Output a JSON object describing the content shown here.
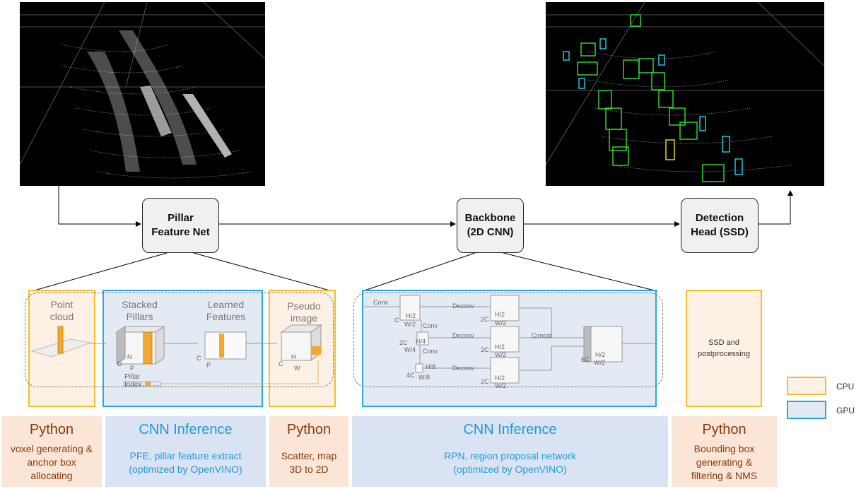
{
  "pipeline": {
    "pillar_feature_net": "Pillar\nFeature Net",
    "backbone": "Backbone\n(2D CNN)",
    "detection_head": "Detection\nHead (SSD)"
  },
  "pillar_diagram": {
    "point_cloud": "Point\ncloud",
    "stacked_pillars": "Stacked\nPillars",
    "learned_features": "Learned\nFeatures",
    "pseudo_image": "Pseudo\nimage",
    "pillar_index": "Pillar Index",
    "dims": {
      "n": "N",
      "d": "D",
      "p": "P",
      "c": "C",
      "p2": "P",
      "c2": "C",
      "h": "H",
      "w": "W"
    }
  },
  "rpn_diagram": {
    "conv1": "Conv",
    "conv2": "Conv",
    "conv3": "Conv",
    "deconv1": "Deconv",
    "deconv2": "Deconv",
    "deconv3": "Deconv",
    "concat": "Concat",
    "c": "C",
    "h2": "H/2",
    "w2": "W/2",
    "c2": "2C",
    "h4": "H/4",
    "w4": "W/4",
    "c4": "4C",
    "h8": "H/8",
    "w8": "W/8",
    "out1_c": "2C",
    "out1_h": "H/2",
    "out1_w": "W/2",
    "out2_c": "2C",
    "out2_h": "H/2",
    "out2_w": "W/2",
    "out3_c": "2C",
    "out3_h": "H/2",
    "out3_w": "W/2",
    "final_c": "6C",
    "final_h": "H/2",
    "final_w": "W/2"
  },
  "ssd_box": "SSD and\npostprocessing",
  "legend": {
    "cpu": "CPU",
    "gpu": "GPU",
    "cpu_color": "#f2c02a",
    "gpu_color": "#29a8e0"
  },
  "panels": [
    {
      "title": "Python",
      "desc": "voxel generating &\nanchor box\nallocating"
    },
    {
      "title": "CNN Inference",
      "desc": "PFE, pillar feature extract\n(optimized by OpenVINO)"
    },
    {
      "title": "Python",
      "desc": "Scatter, map\n3D to 2D"
    },
    {
      "title": "CNN Inference",
      "desc": "RPN, region proposal network\n(optimized by OpenVINO)"
    },
    {
      "title": "Python",
      "desc": "Bounding box\ngenerating &\nfiltering & NMS"
    }
  ]
}
